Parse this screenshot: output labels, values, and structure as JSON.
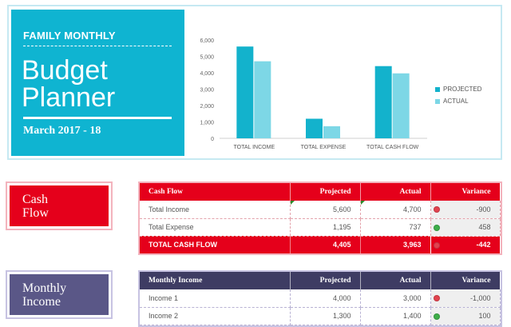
{
  "header": {
    "eyebrow": "FAMILY MONTHLY",
    "title_line1": "Budget",
    "title_line2": "Planner",
    "date": "March 2017 - 18"
  },
  "chart_data": {
    "type": "bar",
    "categories": [
      "TOTAL INCOME",
      "TOTAL EXPENSE",
      "TOTAL CASH FLOW"
    ],
    "series": [
      {
        "name": "PROJECTED",
        "values": [
          5600,
          1195,
          4405
        ],
        "color": "#13b2cc"
      },
      {
        "name": "ACTUAL",
        "values": [
          4700,
          737,
          3963
        ],
        "color": "#7dd7e6"
      }
    ],
    "ylim": [
      0,
      6000
    ],
    "yticks": [
      "0",
      "1,000",
      "2,000",
      "3,000",
      "4,000",
      "5,000",
      "6,000"
    ],
    "legend_position": "right",
    "grid": false
  },
  "cash_flow": {
    "label_line1": "Cash",
    "label_line2": "Flow",
    "label_color": "#e5001b",
    "columns": [
      "Cash Flow",
      "Projected",
      "Actual",
      "Variance"
    ],
    "rows": [
      {
        "name": "Total Income",
        "projected": "5,600",
        "actual": "4,700",
        "variance": "-900",
        "status": "red"
      },
      {
        "name": "Total Expense",
        "projected": "1,195",
        "actual": "737",
        "variance": "458",
        "status": "green"
      }
    ],
    "total": {
      "name": "TOTAL CASH FLOW",
      "projected": "4,405",
      "actual": "3,963",
      "variance": "-442",
      "status": "red"
    }
  },
  "monthly_income": {
    "label_line1": "Monthly",
    "label_line2": "Income",
    "label_color": "#5a5787",
    "columns": [
      "Monthly Income",
      "Projected",
      "Actual",
      "Variance"
    ],
    "rows": [
      {
        "name": "Income 1",
        "projected": "4,000",
        "actual": "3,000",
        "variance": "-1,000",
        "status": "red"
      },
      {
        "name": "Income 2",
        "projected": "1,300",
        "actual": "1,400",
        "variance": "100",
        "status": "green"
      }
    ]
  },
  "colors": {
    "accent": "#0fb4d1",
    "red_dot": "#e2434f",
    "green_dot": "#3fae4a"
  }
}
